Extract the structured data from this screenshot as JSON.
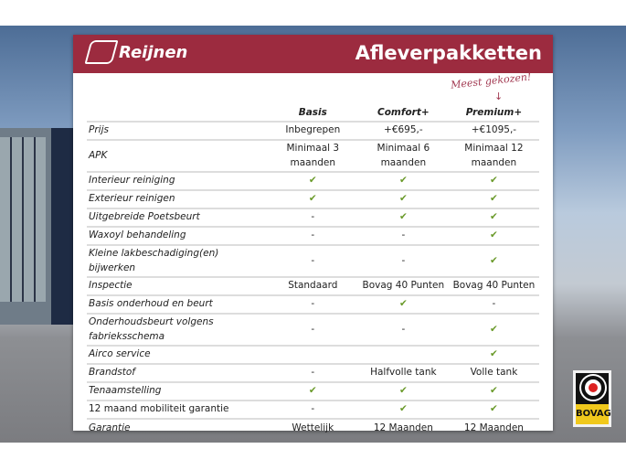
{
  "header": {
    "logo": "Reijnen",
    "title": "Afleverpakketten"
  },
  "note": "Meest gekozen!",
  "columns": [
    "Basis",
    "Comfort+",
    "Premium+"
  ],
  "rows": [
    {
      "label": "Prijs",
      "values": [
        "Inbegrepen",
        "+€695,-",
        "+€1095,-"
      ]
    },
    {
      "label": "APK",
      "values": [
        "Minimaal 3 maanden",
        "Minimaal 6 maanden",
        "Minimaal 12 maanden"
      ]
    },
    {
      "label": "Interieur reiniging",
      "values": [
        "✔",
        "✔",
        "✔"
      ]
    },
    {
      "label": "Exterieur reinigen",
      "values": [
        "✔",
        "✔",
        "✔"
      ]
    },
    {
      "label": "Uitgebreide Poetsbeurt",
      "values": [
        "-",
        "✔",
        "✔"
      ]
    },
    {
      "label": "Waxoyl behandeling",
      "values": [
        "-",
        "-",
        "✔"
      ]
    },
    {
      "label": "Kleine lakbeschadiging(en) bijwerken",
      "values": [
        "-",
        "-",
        "✔"
      ]
    },
    {
      "label": "Inspectie",
      "values": [
        "Standaard",
        "Bovag 40 Punten",
        "Bovag 40 Punten"
      ]
    },
    {
      "label": "Basis onderhoud en beurt",
      "values": [
        "-",
        "✔",
        "-"
      ]
    },
    {
      "label": "Onderhoudsbeurt volgens fabrieksschema",
      "values": [
        "-",
        "-",
        "✔"
      ]
    },
    {
      "label": "Airco service",
      "values": [
        "",
        "",
        "✔"
      ]
    },
    {
      "label": "Brandstof",
      "values": [
        "-",
        "Halfvolle tank",
        "Volle tank"
      ]
    },
    {
      "label": "Tenaamstelling",
      "values": [
        "✔",
        "✔",
        "✔"
      ]
    },
    {
      "label": "12 maand mobiliteit garantie",
      "values": [
        "-",
        "✔",
        "✔"
      ]
    },
    {
      "label": "Garantie",
      "values": [
        "Wettelijk",
        "12 Maanden",
        "12 Maanden"
      ]
    }
  ],
  "badge": "BOVAG",
  "colors": {
    "brand": "#9c2b3f",
    "check": "#6a9a2a"
  }
}
